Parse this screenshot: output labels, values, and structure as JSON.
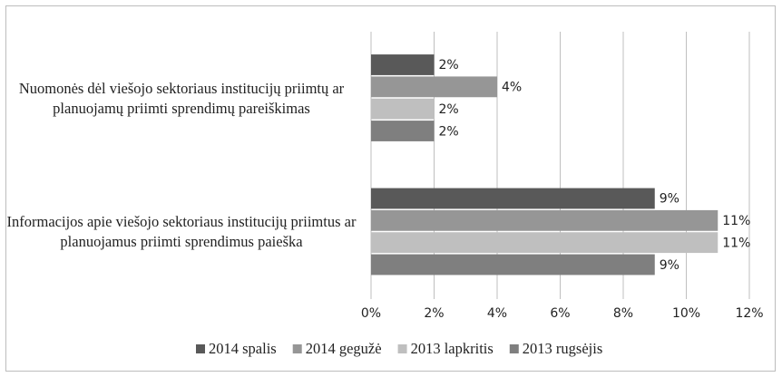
{
  "chart_data": {
    "type": "bar",
    "orientation": "horizontal",
    "categories": [
      "Nuomonės dėl viešojo sektoriaus institucijų priimtų ar planuojamų priimti sprendimų pareiškimas",
      "Informacijos apie viešojo sektoriaus institucijų priimtus ar planuojamus priimti sprendimus paieška"
    ],
    "series": [
      {
        "name": "2014 spalis",
        "color": "#595959",
        "values": [
          2,
          9
        ],
        "value_labels": [
          "2%",
          "9%"
        ]
      },
      {
        "name": "2014 gegužė",
        "color": "#969696",
        "values": [
          4,
          11
        ],
        "value_labels": [
          "4%",
          "11%"
        ]
      },
      {
        "name": "2013 lapkritis",
        "color": "#bfbfbf",
        "values": [
          2,
          11
        ],
        "value_labels": [
          "2%",
          "11%"
        ]
      },
      {
        "name": "2013 rugsėjis",
        "color": "#7f7f7f",
        "values": [
          2,
          9
        ],
        "value_labels": [
          "2%",
          "9%"
        ]
      }
    ],
    "xlim": [
      0,
      12
    ],
    "xticks": [
      {
        "value": 0,
        "label": "0%"
      },
      {
        "value": 2,
        "label": "2%"
      },
      {
        "value": 4,
        "label": "4%"
      },
      {
        "value": 6,
        "label": "6%"
      },
      {
        "value": 8,
        "label": "8%"
      },
      {
        "value": 10,
        "label": "10%"
      },
      {
        "value": 12,
        "label": "12%"
      }
    ],
    "grid": true,
    "legend": "bottom"
  }
}
